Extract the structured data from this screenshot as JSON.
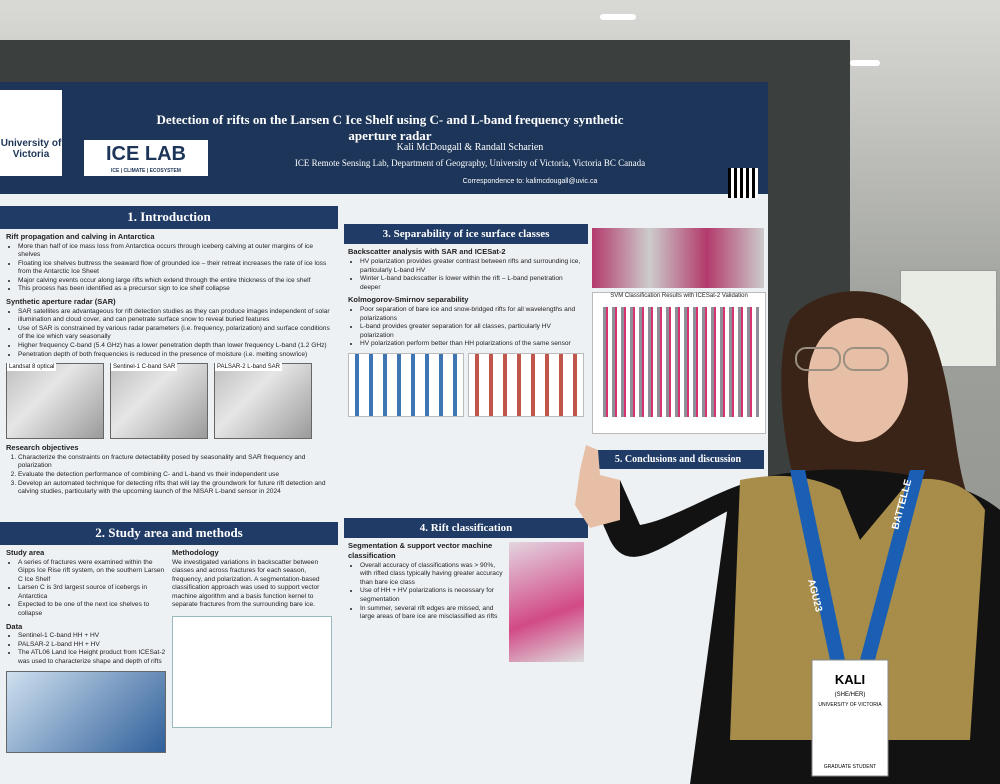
{
  "poster": {
    "logos": {
      "university": "University of Victoria",
      "lab": "ICE LAB",
      "lab_tagline": "ICE | CLIMATE | ECOSYSTEM"
    },
    "title": "Detection of rifts on the Larsen C Ice Shelf using C- and L-band frequency synthetic aperture radar",
    "authors": "Kali McDougall & Randall Scharien",
    "affiliation": "ICE Remote Sensing Lab, Department of Geography, University of Victoria, Victoria BC Canada",
    "correspondence": "Correspondence to: kalimcdougall@uvic.ca",
    "intro": {
      "heading": "1. Introduction",
      "sub1": "Rift propagation and calving in Antarctica",
      "items1": [
        "More than half of ice mass loss from Antarctica occurs through iceberg calving at outer margins of ice shelves",
        "Floating ice shelves buttress the seaward flow of grounded ice – their retreat increases the rate of ice loss from the Antarctic Ice Sheet",
        "Major calving events occur along large rifts which extend through the entire thickness of the ice shelf",
        "This process has been identified as a precursor sign to ice shelf collapse"
      ],
      "sub2": "Synthetic aperture radar (SAR)",
      "items2": [
        "SAR satellites are advantageous for rift detection studies as they can produce images independent of solar illumination and cloud cover, and can penetrate surface snow to reveal buried features",
        "Use of SAR is constrained by various radar parameters (i.e. frequency, polarization) and surface conditions of the ice which vary seasonally",
        "Higher frequency C-band (5.4 GHz) has a lower penetration depth than lower frequency L-band (1.2 GHz)",
        "Penetration depth of both frequencies is reduced in the presence of moisture (i.e. melting snow/ice)"
      ],
      "panels": [
        "Landsat 8 optical",
        "Sentinel-1 C-band SAR",
        "PALSAR-2 L-band SAR"
      ],
      "sub3": "Research objectives",
      "items3": [
        "Characterize the constraints on fracture detectability posed by seasonality and SAR frequency and polarization",
        "Evaluate the detection performance of combining C- and L-band vs their independent use",
        "Develop an automated technique for detecting rifts that will lay the groundwork for future rift detection and calving studies, particularly with the upcoming launch of the NISAR L-band sensor in 2024"
      ]
    },
    "study": {
      "heading": "2. Study area and methods",
      "sub1": "Study area",
      "items1": [
        "A series of fractures were examined within the Gipps Ice Rise rift system, on the southern Larsen C Ice Shelf",
        "Larsen C is 3rd largest source of icebergs in Antarctica",
        "Expected to be one of the next ice shelves to collapse"
      ],
      "sub2": "Data",
      "items2": [
        "Sentinel-1 C-band HH + HV",
        "PALSAR-2 L-band HH + HV",
        "The ATL06 Land Ice Height product from ICESat-2 was used to characterize shape and depth of rifts"
      ],
      "sub3": "Methodology",
      "body3": "We investigated variations in backscatter between classes and across fractures for each season, frequency, and polarization. A segmentation-based classification approach was used to support vector machine algorithm and a basis function kernel to separate fractures from the surrounding bare ice."
    },
    "separability": {
      "heading": "3. Separability of ice surface classes",
      "sub1": "Backscatter analysis with SAR and ICESat-2",
      "items1": [
        "HV polarization provides greater contrast between rifts and surrounding ice, particularly L-band HV",
        "Winter L-band backscatter is lower within the rift – L-band penetration deeper"
      ],
      "sub2": "Kolmogorov-Smirnov separability",
      "items2": [
        "Poor separation of bare ice and snow-bridged rifts for all wavelengths and polarizations",
        "L-band provides greater separation for all classes, particularly HV polarization",
        "HV polarization perform better than HH polarizations of the same sensor"
      ]
    },
    "rift": {
      "heading": "4. Rift classification",
      "sub1": "Segmentation & support vector machine classification",
      "items1": [
        "Overall accuracy of classifications was > 90%, with rifted class typically having greater accuracy than bare ice class",
        "Use of HH + HV polarizations is necessary for segmentation",
        "In summer, several rift edges are missed, and large areas of bare ice are misclassified as rifts"
      ]
    },
    "conclusions": {
      "heading": "5. Conclusions and discussion"
    },
    "chart_titles": [
      "SVM Classification Results with ICESat-2 Validation"
    ]
  },
  "badge": {
    "lanyard": [
      "AGU23",
      "BATTELLE"
    ],
    "name": "KALI",
    "pronouns": "(SHE/HER)",
    "org": "UNIVERSITY OF VICTORIA",
    "role": "GRADUATE STUDENT"
  }
}
